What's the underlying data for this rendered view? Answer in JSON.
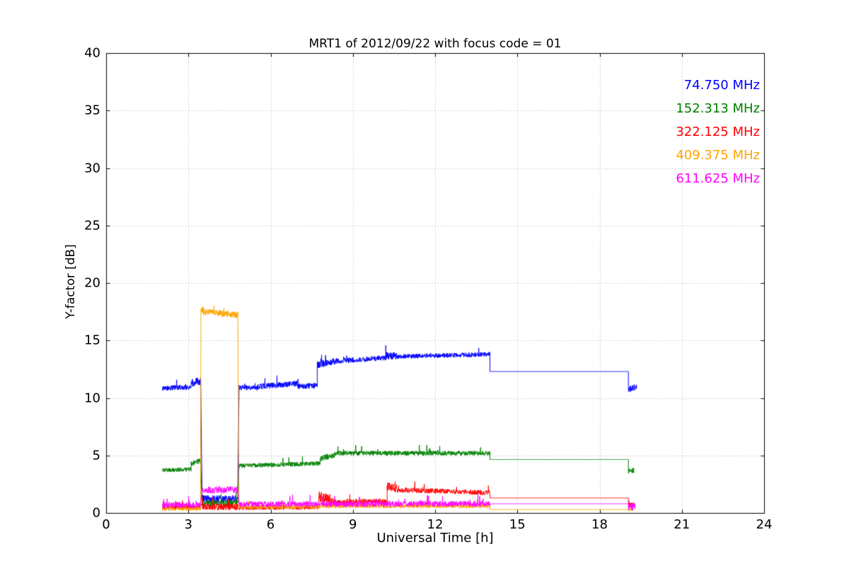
{
  "chart_data": {
    "type": "line",
    "title": "MRT1 of 2012/09/22 with focus code = 01",
    "xlabel": "Universal Time [h]",
    "ylabel": "Y-factor [dB]",
    "xlim": [
      0,
      24
    ],
    "ylim": [
      0,
      40
    ],
    "xticks": [
      0,
      3,
      6,
      9,
      12,
      15,
      18,
      21,
      24
    ],
    "yticks": [
      0,
      5,
      10,
      15,
      20,
      25,
      30,
      35,
      40
    ],
    "grid": true,
    "grid_style": "dotted",
    "legend_position": "top-right",
    "series": [
      {
        "name": "74.750 MHz",
        "color": "#0000ff",
        "segments": [
          {
            "x0": 2.05,
            "x1": 3.1,
            "y0": 10.85,
            "y1": 10.95,
            "noise": 0.22
          },
          {
            "x0": 3.1,
            "x1": 3.45,
            "y0": 11.3,
            "y1": 11.5,
            "noise": 0.35
          },
          {
            "x0": 3.5,
            "x1": 4.8,
            "y0": 1.2,
            "y1": 1.2,
            "noise": 0.35
          },
          {
            "x0": 4.85,
            "x1": 5.6,
            "y0": 10.9,
            "y1": 10.85,
            "noise": 0.22
          },
          {
            "x0": 5.6,
            "x1": 7.0,
            "y0": 11.0,
            "y1": 11.25,
            "noise": 0.25
          },
          {
            "x0": 7.0,
            "x1": 7.7,
            "y0": 11.0,
            "y1": 11.1,
            "noise": 0.25
          },
          {
            "x0": 7.7,
            "x1": 8.4,
            "y0": 12.9,
            "y1": 13.2,
            "noise": 0.3
          },
          {
            "x0": 8.4,
            "x1": 10.2,
            "y0": 13.2,
            "y1": 13.5,
            "noise": 0.22
          },
          {
            "x0": 10.2,
            "x1": 10.6,
            "y0": 13.7,
            "y1": 13.6,
            "noise": 0.35
          },
          {
            "x0": 10.6,
            "x1": 14.0,
            "y0": 13.6,
            "y1": 13.8,
            "noise": 0.2
          },
          {
            "x0": 14.0,
            "x1": 19.05,
            "y0": 12.3,
            "y1": 12.3,
            "noise": 0
          },
          {
            "x0": 19.05,
            "x1": 19.35,
            "y0": 10.8,
            "y1": 10.9,
            "noise": 0.3
          }
        ]
      },
      {
        "name": "152.313 MHz",
        "color": "#008000",
        "segments": [
          {
            "x0": 2.05,
            "x1": 3.1,
            "y0": 3.7,
            "y1": 3.8,
            "noise": 0.18
          },
          {
            "x0": 3.1,
            "x1": 3.45,
            "y0": 4.3,
            "y1": 4.5,
            "noise": 0.25
          },
          {
            "x0": 3.5,
            "x1": 4.8,
            "y0": 0.85,
            "y1": 0.85,
            "noise": 0.3
          },
          {
            "x0": 4.85,
            "x1": 7.8,
            "y0": 4.1,
            "y1": 4.3,
            "noise": 0.2
          },
          {
            "x0": 7.8,
            "x1": 8.4,
            "y0": 4.7,
            "y1": 5.1,
            "noise": 0.25
          },
          {
            "x0": 8.4,
            "x1": 14.0,
            "y0": 5.2,
            "y1": 5.2,
            "noise": 0.2
          },
          {
            "x0": 14.0,
            "x1": 19.05,
            "y0": 4.65,
            "y1": 4.65,
            "noise": 0
          },
          {
            "x0": 19.05,
            "x1": 19.25,
            "y0": 3.7,
            "y1": 3.7,
            "noise": 0.25
          }
        ]
      },
      {
        "name": "322.125 MHz",
        "color": "#ff0000",
        "segments": [
          {
            "x0": 2.05,
            "x1": 3.45,
            "y0": 0.45,
            "y1": 0.45,
            "noise": 0.2
          },
          {
            "x0": 3.5,
            "x1": 4.8,
            "y0": 0.55,
            "y1": 0.55,
            "noise": 0.3
          },
          {
            "x0": 4.85,
            "x1": 7.75,
            "y0": 0.45,
            "y1": 0.5,
            "noise": 0.2
          },
          {
            "x0": 7.75,
            "x1": 8.25,
            "y0": 1.4,
            "y1": 1.1,
            "noise": 0.5
          },
          {
            "x0": 8.25,
            "x1": 10.25,
            "y0": 0.95,
            "y1": 1.0,
            "noise": 0.25
          },
          {
            "x0": 10.25,
            "x1": 10.7,
            "y0": 2.3,
            "y1": 2.1,
            "noise": 0.35
          },
          {
            "x0": 10.7,
            "x1": 14.0,
            "y0": 2.0,
            "y1": 1.75,
            "noise": 0.22
          },
          {
            "x0": 14.0,
            "x1": 19.05,
            "y0": 1.3,
            "y1": 1.3,
            "noise": 0
          },
          {
            "x0": 19.05,
            "x1": 19.25,
            "y0": 0.7,
            "y1": 0.7,
            "noise": 0.2
          }
        ]
      },
      {
        "name": "409.375 MHz",
        "color": "#ffa500",
        "segments": [
          {
            "x0": 2.05,
            "x1": 3.44,
            "y0": 0.35,
            "y1": 0.35,
            "noise": 0.15
          },
          {
            "x0": 3.46,
            "x1": 3.55,
            "y0": 17.8,
            "y1": 17.6,
            "noise": 0.4
          },
          {
            "x0": 3.55,
            "x1": 4.8,
            "y0": 17.5,
            "y1": 17.2,
            "noise": 0.3
          },
          {
            "x0": 4.85,
            "x1": 7.7,
            "y0": 0.5,
            "y1": 0.55,
            "noise": 0.18
          },
          {
            "x0": 7.7,
            "x1": 14.0,
            "y0": 0.6,
            "y1": 0.6,
            "noise": 0.18
          },
          {
            "x0": 14.0,
            "x1": 19.05,
            "y0": 0.3,
            "y1": 0.3,
            "noise": 0
          },
          {
            "x0": 19.05,
            "x1": 19.25,
            "y0": 0.3,
            "y1": 0.3,
            "noise": 0.12
          }
        ]
      },
      {
        "name": "611.625 MHz",
        "color": "#ff00ff",
        "segments": [
          {
            "x0": 2.05,
            "x1": 3.45,
            "y0": 0.7,
            "y1": 0.7,
            "noise": 0.25
          },
          {
            "x0": 3.5,
            "x1": 4.8,
            "y0": 2.0,
            "y1": 2.0,
            "noise": 0.3
          },
          {
            "x0": 4.85,
            "x1": 14.0,
            "y0": 0.75,
            "y1": 0.8,
            "noise": 0.25
          },
          {
            "x0": 14.0,
            "x1": 19.05,
            "y0": 0.8,
            "y1": 0.8,
            "noise": 0
          },
          {
            "x0": 19.05,
            "x1": 19.3,
            "y0": 0.55,
            "y1": 0.55,
            "noise": 0.3
          }
        ]
      }
    ]
  }
}
